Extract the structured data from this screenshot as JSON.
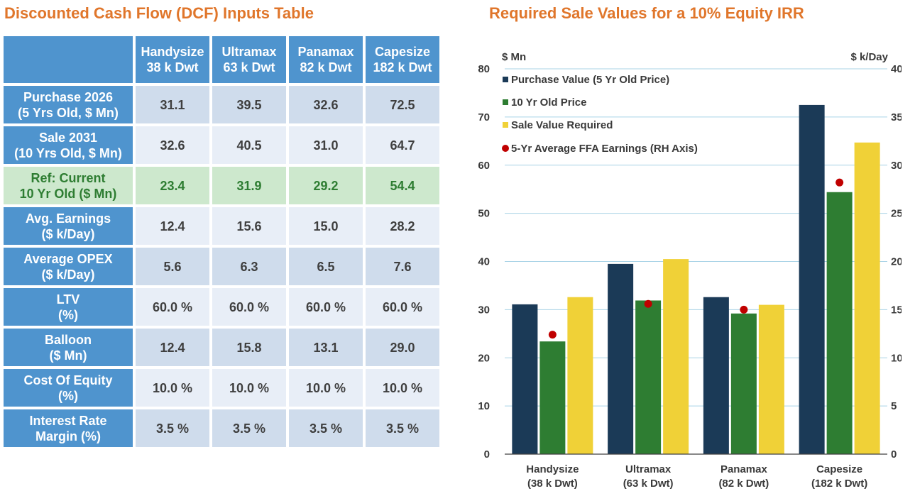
{
  "table": {
    "title": "Discounted Cash Flow (DCF) Inputs Table",
    "columns": [
      {
        "line1": "Handysize",
        "line2": "38 k Dwt"
      },
      {
        "line1": "Ultramax",
        "line2": "63 k Dwt"
      },
      {
        "line1": "Panamax",
        "line2": "82 k Dwt"
      },
      {
        "line1": "Capesize",
        "line2": "182 k Dwt"
      }
    ],
    "rows": [
      {
        "label1": "Purchase 2026",
        "label2": "(5 Yrs Old, $ Mn)",
        "values": [
          "31.1",
          "39.5",
          "32.6",
          "72.5"
        ]
      },
      {
        "label1": "Sale 2031",
        "label2": "(10 Yrs Old, $ Mn)",
        "values": [
          "32.6",
          "40.5",
          "31.0",
          "64.7"
        ]
      },
      {
        "label1": "Ref: Current",
        "label2": "10 Yr Old ($ Mn)",
        "values": [
          "23.4",
          "31.9",
          "29.2",
          "54.4"
        ]
      },
      {
        "label1": "Avg. Earnings",
        "label2": "($ k/Day)",
        "values": [
          "12.4",
          "15.6",
          "15.0",
          "28.2"
        ]
      },
      {
        "label1": "Average OPEX",
        "label2": "($ k/Day)",
        "values": [
          "5.6",
          "6.3",
          "6.5",
          "7.6"
        ]
      },
      {
        "label1": "LTV",
        "label2": "(%)",
        "values": [
          "60.0 %",
          "60.0 %",
          "60.0 %",
          "60.0 %"
        ]
      },
      {
        "label1": "Balloon",
        "label2": "($ Mn)",
        "values": [
          "12.4",
          "15.8",
          "13.1",
          "29.0"
        ]
      },
      {
        "label1": "Cost Of Equity",
        "label2": "(%)",
        "values": [
          "10.0 %",
          "10.0 %",
          "10.0 %",
          "10.0 %"
        ]
      },
      {
        "label1": "Interest Rate",
        "label2": "Margin (%)",
        "values": [
          "3.5 %",
          "3.5 %",
          "3.5 %",
          "3.5 %"
        ]
      }
    ]
  },
  "chart_data": {
    "type": "bar",
    "title": "Required Sale Values for a 10% Equity IRR",
    "ylabel": "$ Mn",
    "y2label": "$ k/Day",
    "ylim": [
      0,
      80
    ],
    "y2lim": [
      0,
      40
    ],
    "yticks": [
      "0",
      "10",
      "20",
      "30",
      "40",
      "50",
      "60",
      "70",
      "80"
    ],
    "y2ticks": [
      "0",
      "5",
      "10",
      "15",
      "20",
      "25",
      "30",
      "35",
      "40"
    ],
    "grid": true,
    "legend_position": "top-left",
    "categories": [
      {
        "line1": "Handysize",
        "line2": "(38 k Dwt)"
      },
      {
        "line1": "Ultramax",
        "line2": "(63 k Dwt)"
      },
      {
        "line1": "Panamax",
        "line2": "(82 k Dwt)"
      },
      {
        "line1": "Capesize",
        "line2": "(182 k Dwt)"
      }
    ],
    "series": [
      {
        "name": "Purchase Value (5 Yr Old Price)",
        "color": "#1b3a57",
        "values": [
          31.1,
          39.5,
          32.6,
          72.5
        ]
      },
      {
        "name": "10 Yr Old Price",
        "color": "#2e7d32",
        "values": [
          23.4,
          31.9,
          29.2,
          54.4
        ]
      },
      {
        "name": "Sale Value Required",
        "color": "#f0d137",
        "values": [
          32.6,
          40.5,
          31.0,
          64.7
        ]
      }
    ],
    "scatter": {
      "name": "5-Yr Average FFA Earnings (RH Axis)",
      "color": "#c00000",
      "axis": "right",
      "values": [
        12.4,
        15.6,
        15.0,
        28.2
      ]
    },
    "colors": {
      "grid": "#a9d3e6",
      "axis_text": "#3a3a3a"
    }
  }
}
